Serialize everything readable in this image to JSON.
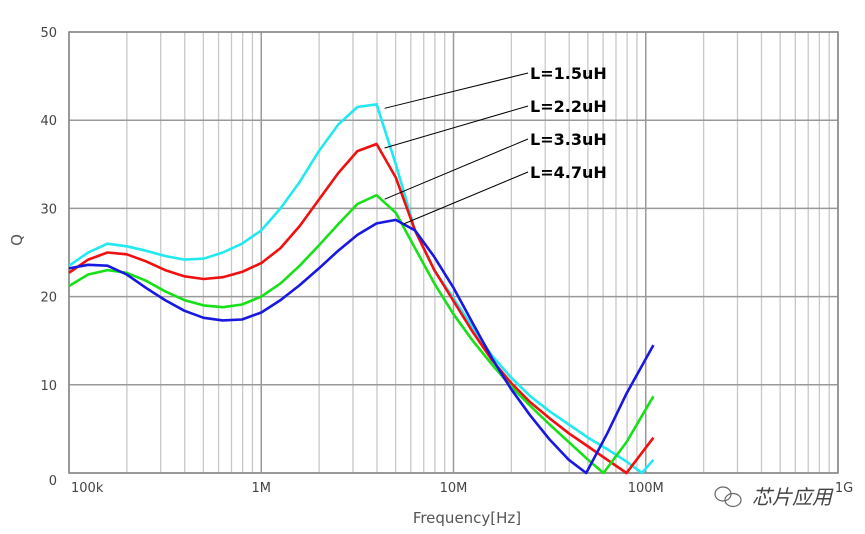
{
  "chart_data": {
    "type": "line",
    "title": "",
    "xlabel": "Frequency[Hz]",
    "ylabel": "Q",
    "xscale": "log",
    "xlim_hz": [
      100000,
      1000000000
    ],
    "ylim": [
      0,
      50
    ],
    "grid": true,
    "x_tick_labels": [
      "100k",
      "1M",
      "10M",
      "100M",
      "1G"
    ],
    "x_tick_values_hz": [
      100000,
      1000000,
      10000000,
      100000000,
      1000000000
    ],
    "y_tick_labels": [
      "0",
      "10",
      "20",
      "30",
      "40",
      "50"
    ],
    "y_tick_values": [
      0,
      10,
      20,
      30,
      40,
      50
    ],
    "series": [
      {
        "name": "L=1.5uH",
        "color": "#22e8f0",
        "x_log10_hz": [
          5.0,
          5.1,
          5.2,
          5.3,
          5.4,
          5.5,
          5.6,
          5.7,
          5.8,
          5.9,
          6.0,
          6.1,
          6.2,
          6.3,
          6.4,
          6.5,
          6.6,
          6.7,
          6.8,
          6.9,
          7.0,
          7.1,
          7.2,
          7.3,
          7.4,
          7.5,
          7.6,
          7.7,
          7.8,
          7.9,
          7.98,
          8.04
        ],
        "y": [
          23.5,
          25,
          26,
          25.7,
          25.2,
          24.6,
          24.2,
          24.3,
          25,
          26,
          27.5,
          30,
          33,
          36.5,
          39.5,
          41.5,
          41.8,
          35,
          27.5,
          23,
          19.8,
          16.5,
          13.3,
          10.8,
          8.7,
          7,
          5.5,
          4,
          2.7,
          1.3,
          0,
          1.5
        ]
      },
      {
        "name": "L=2.2uH",
        "color": "#f01010",
        "x_log10_hz": [
          5.0,
          5.1,
          5.2,
          5.3,
          5.4,
          5.5,
          5.6,
          5.7,
          5.8,
          5.9,
          6.0,
          6.1,
          6.2,
          6.3,
          6.4,
          6.5,
          6.6,
          6.7,
          6.8,
          6.9,
          7.0,
          7.1,
          7.2,
          7.3,
          7.4,
          7.5,
          7.6,
          7.7,
          7.8,
          7.9,
          8.04
        ],
        "y": [
          22.7,
          24.2,
          25,
          24.8,
          24,
          23,
          22.3,
          22,
          22.2,
          22.8,
          23.8,
          25.5,
          28,
          31,
          34,
          36.5,
          37.3,
          33.5,
          27.5,
          23,
          19.5,
          16,
          12.8,
          10.2,
          8,
          6.2,
          4.5,
          3,
          1.5,
          0,
          4
        ]
      },
      {
        "name": "L=3.3uH",
        "color": "#18e018",
        "x_log10_hz": [
          5.0,
          5.1,
          5.2,
          5.3,
          5.4,
          5.5,
          5.6,
          5.7,
          5.8,
          5.9,
          6.0,
          6.1,
          6.2,
          6.3,
          6.4,
          6.5,
          6.6,
          6.7,
          6.8,
          6.9,
          7.0,
          7.1,
          7.2,
          7.3,
          7.4,
          7.5,
          7.6,
          7.7,
          7.78,
          7.9,
          8.04
        ],
        "y": [
          21.2,
          22.5,
          23,
          22.7,
          21.8,
          20.6,
          19.6,
          19,
          18.8,
          19.1,
          20,
          21.5,
          23.5,
          25.8,
          28.2,
          30.5,
          31.5,
          29.5,
          25.5,
          21.5,
          18,
          15,
          12.3,
          9.8,
          7.6,
          5.5,
          3.5,
          1.5,
          0,
          3.5,
          8.7
        ]
      },
      {
        "name": "L=4.7uH",
        "color": "#1818e0",
        "x_log10_hz": [
          5.0,
          5.1,
          5.2,
          5.3,
          5.4,
          5.5,
          5.6,
          5.7,
          5.8,
          5.9,
          6.0,
          6.1,
          6.2,
          6.3,
          6.4,
          6.5,
          6.6,
          6.7,
          6.8,
          6.9,
          7.0,
          7.1,
          7.2,
          7.3,
          7.4,
          7.5,
          7.6,
          7.69,
          7.8,
          7.9,
          8.04
        ],
        "y": [
          23.2,
          23.6,
          23.5,
          22.5,
          21,
          19.6,
          18.4,
          17.6,
          17.3,
          17.4,
          18.2,
          19.6,
          21.3,
          23.2,
          25.2,
          27,
          28.3,
          28.7,
          27.5,
          24.5,
          21,
          17,
          13,
          9.5,
          6.5,
          3.8,
          1.5,
          0,
          4.5,
          9,
          14.5
        ]
      }
    ],
    "annotations": [
      "L=1.5uH",
      "L=2.2uH",
      "L=3.3uH",
      "L=4.7uH"
    ]
  },
  "watermark": {
    "text": "芯片应用",
    "icon": "wechat-icon"
  }
}
